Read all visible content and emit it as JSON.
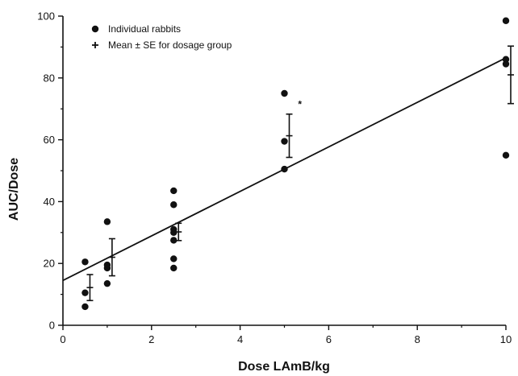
{
  "chart_data": {
    "type": "scatter",
    "xlabel": "Dose  LAmB/kg",
    "ylabel": "AUC/Dose",
    "xlim": [
      0,
      10
    ],
    "ylim": [
      0,
      100
    ],
    "xticks": [
      0,
      2,
      4,
      6,
      8,
      10
    ],
    "yticks": [
      0,
      20,
      40,
      60,
      80,
      100
    ],
    "grid": false,
    "legend_position": "top-left",
    "legend": [
      {
        "marker": "•",
        "label": "Individual rabbits"
      },
      {
        "marker": "+",
        "label": "Mean ± SE for dosage group"
      }
    ],
    "individual_points": [
      {
        "x": 0.5,
        "y": 20.5
      },
      {
        "x": 0.5,
        "y": 10.5
      },
      {
        "x": 0.5,
        "y": 6.0
      },
      {
        "x": 1.0,
        "y": 33.5
      },
      {
        "x": 1.0,
        "y": 19.5
      },
      {
        "x": 1.0,
        "y": 18.5
      },
      {
        "x": 1.0,
        "y": 13.5
      },
      {
        "x": 2.5,
        "y": 43.5
      },
      {
        "x": 2.5,
        "y": 39.0
      },
      {
        "x": 2.5,
        "y": 31.0
      },
      {
        "x": 2.5,
        "y": 30.0
      },
      {
        "x": 2.5,
        "y": 27.5
      },
      {
        "x": 2.5,
        "y": 21.5
      },
      {
        "x": 2.5,
        "y": 18.5
      },
      {
        "x": 5.0,
        "y": 75.0
      },
      {
        "x": 5.0,
        "y": 59.5
      },
      {
        "x": 5.0,
        "y": 50.5
      },
      {
        "x": 10.0,
        "y": 98.5
      },
      {
        "x": 10.0,
        "y": 86.0
      },
      {
        "x": 10.0,
        "y": 84.5
      },
      {
        "x": 10.0,
        "y": 55.0
      }
    ],
    "group_means": [
      {
        "x": 0.5,
        "mean": 12.2,
        "se": 4.2
      },
      {
        "x": 1.0,
        "mean": 22.0,
        "se": 6.0
      },
      {
        "x": 2.5,
        "mean": 30.2,
        "se": 2.8
      },
      {
        "x": 5.0,
        "mean": 61.3,
        "se": 7.0
      },
      {
        "x": 10.0,
        "mean": 81.0,
        "se": 9.3
      }
    ],
    "fit_line": [
      {
        "x": 0,
        "y": 14.5
      },
      {
        "x": 10,
        "y": 86.5
      }
    ],
    "annotations": [
      {
        "text": "*",
        "x": 5.35,
        "y": 71.5
      }
    ]
  }
}
